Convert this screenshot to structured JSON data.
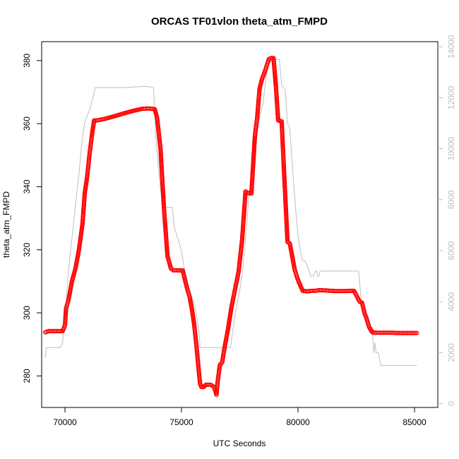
{
  "chart_data": {
    "type": "scatter",
    "title": "ORCAS TF01vlon theta_atm_FMPD",
    "xlabel": "UTC Seconds",
    "ylabel": "theta_atm_FMPD",
    "xlim": [
      69000,
      86000
    ],
    "ylim": [
      270,
      386
    ],
    "y2lim": [
      -150,
      14200
    ],
    "x_ticks": [
      70000,
      75000,
      80000,
      85000
    ],
    "y_ticks": [
      280,
      300,
      320,
      340,
      360,
      380
    ],
    "y2_ticks": [
      0,
      2000,
      4000,
      6000,
      8000,
      10000,
      12000,
      14000
    ],
    "grid": false,
    "colors": {
      "theta": "#ff0000",
      "altitude": "#bebebe",
      "frame": "#000000"
    },
    "series": [
      {
        "marker": "open-circle",
        "axis": "left",
        "x": [
          69150,
          69300,
          69500,
          69700,
          69900,
          70000,
          70050,
          70150,
          70300,
          70450,
          70600,
          70750,
          70850,
          70950,
          71050,
          71150,
          71250,
          71350,
          71700,
          72100,
          72500,
          72900,
          73300,
          73600,
          73850,
          73950,
          74100,
          74250,
          74400,
          74550,
          74650,
          74800,
          75050,
          75150,
          75250,
          75350,
          75450,
          75550,
          75650,
          75750,
          75800,
          75850,
          75950,
          76050,
          76150,
          76250,
          76400,
          76500,
          76550,
          76650,
          76700,
          76750,
          76850,
          77000,
          77150,
          77300,
          77450,
          77600,
          77750,
          77850,
          78000,
          78150,
          78250,
          78350,
          78450,
          78600,
          78750,
          78850,
          78950,
          79050,
          79150,
          79250,
          79300,
          79400,
          79550,
          79650,
          79750,
          79850,
          79950,
          80050,
          80200,
          80400,
          80600,
          80750,
          80900,
          81200,
          81600,
          82000,
          82400,
          82650,
          82750,
          82850,
          82950,
          83050,
          83200,
          83350,
          83500,
          83700,
          84000,
          84300,
          84700,
          85100
        ],
        "y": [
          293.8,
          294.2,
          294.2,
          294.2,
          294.2,
          296,
          301.5,
          304,
          310,
          314,
          320,
          328,
          338,
          343,
          350,
          356,
          361,
          361,
          361.5,
          362.3,
          363.2,
          364,
          364.7,
          364.8,
          364.6,
          362,
          352,
          333,
          318,
          314,
          313.5,
          313.5,
          313.5,
          310.5,
          307.5,
          305,
          301,
          296,
          289,
          281,
          277.5,
          276.5,
          276.5,
          277.2,
          277.2,
          277.2,
          276.5,
          274,
          278,
          283.6,
          283.8,
          284.5,
          289,
          295,
          302,
          307.5,
          313,
          323,
          338.5,
          338,
          337.8,
          356,
          362,
          371,
          374,
          377,
          380.5,
          380.8,
          380.8,
          372,
          361,
          360.8,
          360.7,
          345,
          322.5,
          322,
          318,
          314,
          311.5,
          309.5,
          307,
          306.8,
          307,
          307,
          307.2,
          307.1,
          306.9,
          306.9,
          307,
          303.5,
          303.2,
          300,
          298,
          295.5,
          293.8,
          293.7,
          293.7,
          293.7,
          293.7,
          293.6,
          293.6,
          293.6
        ]
      },
      {
        "marker": "line",
        "axis": "right",
        "x": [
          69150,
          69200,
          69300,
          69800,
          69900,
          70050,
          70150,
          70300,
          70450,
          70600,
          70700,
          70800,
          70850,
          70950,
          71050,
          71200,
          71300,
          71500,
          72500,
          73500,
          73800,
          73900,
          74050,
          74200,
          74400,
          74600,
          74700,
          75000,
          75100,
          75300,
          75600,
          75750,
          75800,
          76050,
          76200,
          76500,
          76800,
          77100,
          77300,
          77450,
          77600,
          77700,
          77800,
          77900,
          78100,
          78200,
          78300,
          78400,
          78500,
          78600,
          78700,
          78800,
          79000,
          79200,
          79300,
          79450,
          79550,
          79650,
          79800,
          79900,
          80000,
          80100,
          80200,
          80300,
          80400,
          80550,
          80650,
          80750,
          80800,
          80850,
          80900,
          80950,
          81000,
          81100,
          82000,
          82600,
          82700,
          82800,
          82900,
          83000,
          83050,
          83200,
          83250,
          83300,
          83350,
          83450,
          83550,
          83700,
          84000,
          85100
        ],
        "y": [
          1800,
          2200,
          2200,
          2200,
          2400,
          4000,
          5200,
          6500,
          7800,
          9000,
          10000,
          10800,
          11000,
          11300,
          11500,
          12000,
          12400,
          12400,
          12400,
          12450,
          12400,
          10500,
          8800,
          7700,
          7700,
          7700,
          6900,
          6000,
          5400,
          4600,
          3700,
          2800,
          2200,
          2200,
          2200,
          2200,
          2200,
          2200,
          3500,
          4200,
          5000,
          6000,
          7000,
          8300,
          9300,
          10200,
          11000,
          11400,
          11800,
          12600,
          13200,
          13400,
          13500,
          13500,
          12500,
          12300,
          11000,
          10800,
          8800,
          7600,
          6600,
          6000,
          5600,
          5600,
          5400,
          5000,
          5000,
          5200,
          5200,
          5000,
          5000,
          5200,
          5200,
          5200,
          5200,
          5200,
          4200,
          3800,
          3300,
          3200,
          2800,
          2700,
          2000,
          2400,
          2000,
          2000,
          1500,
          1500,
          1500,
          1500
        ]
      }
    ]
  }
}
